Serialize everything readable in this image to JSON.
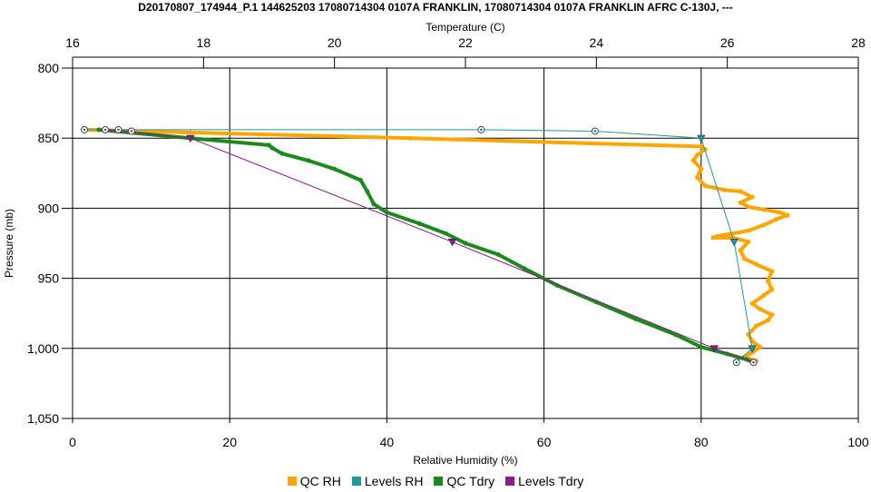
{
  "chart_data": {
    "type": "line",
    "title": "D20170807_174944_P.1 144625203 17080714304 0107A FRANKLIN, 17080714304 0107A FRANKLIN AFRC C-130J, ---",
    "xlabel": "Relative Humidity (%)",
    "x2label": "Temperature (C)",
    "ylabel": "Pressure (mb)",
    "xlim": [
      0,
      100
    ],
    "x_ticks": [
      "0",
      "20",
      "40",
      "60",
      "80",
      "100"
    ],
    "x2lim": [
      16,
      28
    ],
    "x2_ticks": [
      "16",
      "18",
      "20",
      "22",
      "24",
      "26",
      "28"
    ],
    "ylim": [
      800,
      1050
    ],
    "y_inverted": true,
    "y_ticks": [
      "800",
      "850",
      "900",
      "950",
      "1,000",
      "1,050"
    ],
    "grid": true,
    "legend_position": "bottom",
    "series": [
      {
        "name": "QC RH",
        "axis": "bottom",
        "color": "#FFA500",
        "points": [
          [
            1.5,
            844
          ],
          [
            15,
            846
          ],
          [
            43,
            850
          ],
          [
            80,
            856
          ],
          [
            80.5,
            858
          ],
          [
            79.5,
            862
          ],
          [
            79,
            866
          ],
          [
            80,
            872
          ],
          [
            79.5,
            878
          ],
          [
            80.5,
            884
          ],
          [
            83,
            887
          ],
          [
            85,
            888
          ],
          [
            86.5,
            892
          ],
          [
            85,
            896
          ],
          [
            86,
            899
          ],
          [
            88,
            901
          ],
          [
            90,
            903
          ],
          [
            91,
            905
          ],
          [
            89.5,
            908
          ],
          [
            88,
            912
          ],
          [
            86,
            916
          ],
          [
            82,
            920
          ],
          [
            81.5,
            921
          ],
          [
            84,
            921
          ],
          [
            86,
            924
          ],
          [
            85,
            930
          ],
          [
            85.5,
            936
          ],
          [
            87,
            940
          ],
          [
            89,
            945
          ],
          [
            88.5,
            952
          ],
          [
            89,
            958
          ],
          [
            88,
            962
          ],
          [
            86.5,
            968
          ],
          [
            87.5,
            972
          ],
          [
            89,
            976
          ],
          [
            88.5,
            980
          ],
          [
            87,
            984
          ],
          [
            86,
            990
          ],
          [
            86.5,
            995
          ],
          [
            87.5,
            999
          ],
          [
            86.5,
            1003
          ],
          [
            85.5,
            1006
          ],
          [
            87,
            1009
          ]
        ]
      },
      {
        "name": "Levels RH",
        "axis": "bottom",
        "color": "#20989A",
        "points": [
          [
            1.5,
            844
          ],
          [
            52,
            844
          ],
          [
            66.5,
            845
          ],
          [
            80,
            850
          ],
          [
            84.2,
            924
          ],
          [
            86.5,
            1000
          ],
          [
            84.5,
            1010
          ]
        ]
      },
      {
        "name": "QC Tdry",
        "axis": "top",
        "color": "#1A8A1A",
        "points": [
          [
            16.4,
            844
          ],
          [
            17.8,
            850
          ],
          [
            19.0,
            855
          ],
          [
            19.05,
            857
          ],
          [
            19.2,
            861
          ],
          [
            19.6,
            866
          ],
          [
            20.0,
            872
          ],
          [
            20.4,
            880
          ],
          [
            20.5,
            888
          ],
          [
            20.6,
            897
          ],
          [
            20.8,
            903
          ],
          [
            21.3,
            911
          ],
          [
            21.7,
            918
          ],
          [
            22.0,
            925
          ],
          [
            22.5,
            933
          ],
          [
            22.9,
            943
          ],
          [
            23.4,
            955
          ],
          [
            24.0,
            967
          ],
          [
            24.6,
            979
          ],
          [
            25.2,
            990
          ],
          [
            25.6,
            999
          ],
          [
            26.0,
            1004
          ],
          [
            26.3,
            1008
          ],
          [
            26.4,
            1010
          ]
        ]
      },
      {
        "name": "Levels Tdry",
        "axis": "top",
        "color": "#8E1A8E",
        "points": [
          [
            16.5,
            844
          ],
          [
            17.8,
            850
          ],
          [
            21.8,
            924
          ],
          [
            25.8,
            1000
          ],
          [
            26.4,
            1010
          ]
        ]
      }
    ],
    "level_markers": {
      "rh": [
        [
          1.5,
          844
        ],
        [
          52,
          844
        ],
        [
          66.5,
          845
        ],
        [
          80,
          850
        ],
        [
          84.2,
          924
        ],
        [
          86.5,
          1000
        ],
        [
          84.5,
          1010
        ]
      ],
      "tdry": [
        [
          16.5,
          844
        ],
        [
          16.7,
          844
        ],
        [
          16.9,
          845
        ],
        [
          17.8,
          850
        ],
        [
          21.8,
          924
        ],
        [
          25.8,
          1000
        ],
        [
          26.4,
          1010
        ]
      ]
    }
  },
  "legend": {
    "items": [
      {
        "label": "QC RH",
        "color": "#FFA500"
      },
      {
        "label": "Levels RH",
        "color": "#20989A"
      },
      {
        "label": "QC Tdry",
        "color": "#1A8A1A"
      },
      {
        "label": "Levels Tdry",
        "color": "#8E1A8E"
      }
    ]
  }
}
